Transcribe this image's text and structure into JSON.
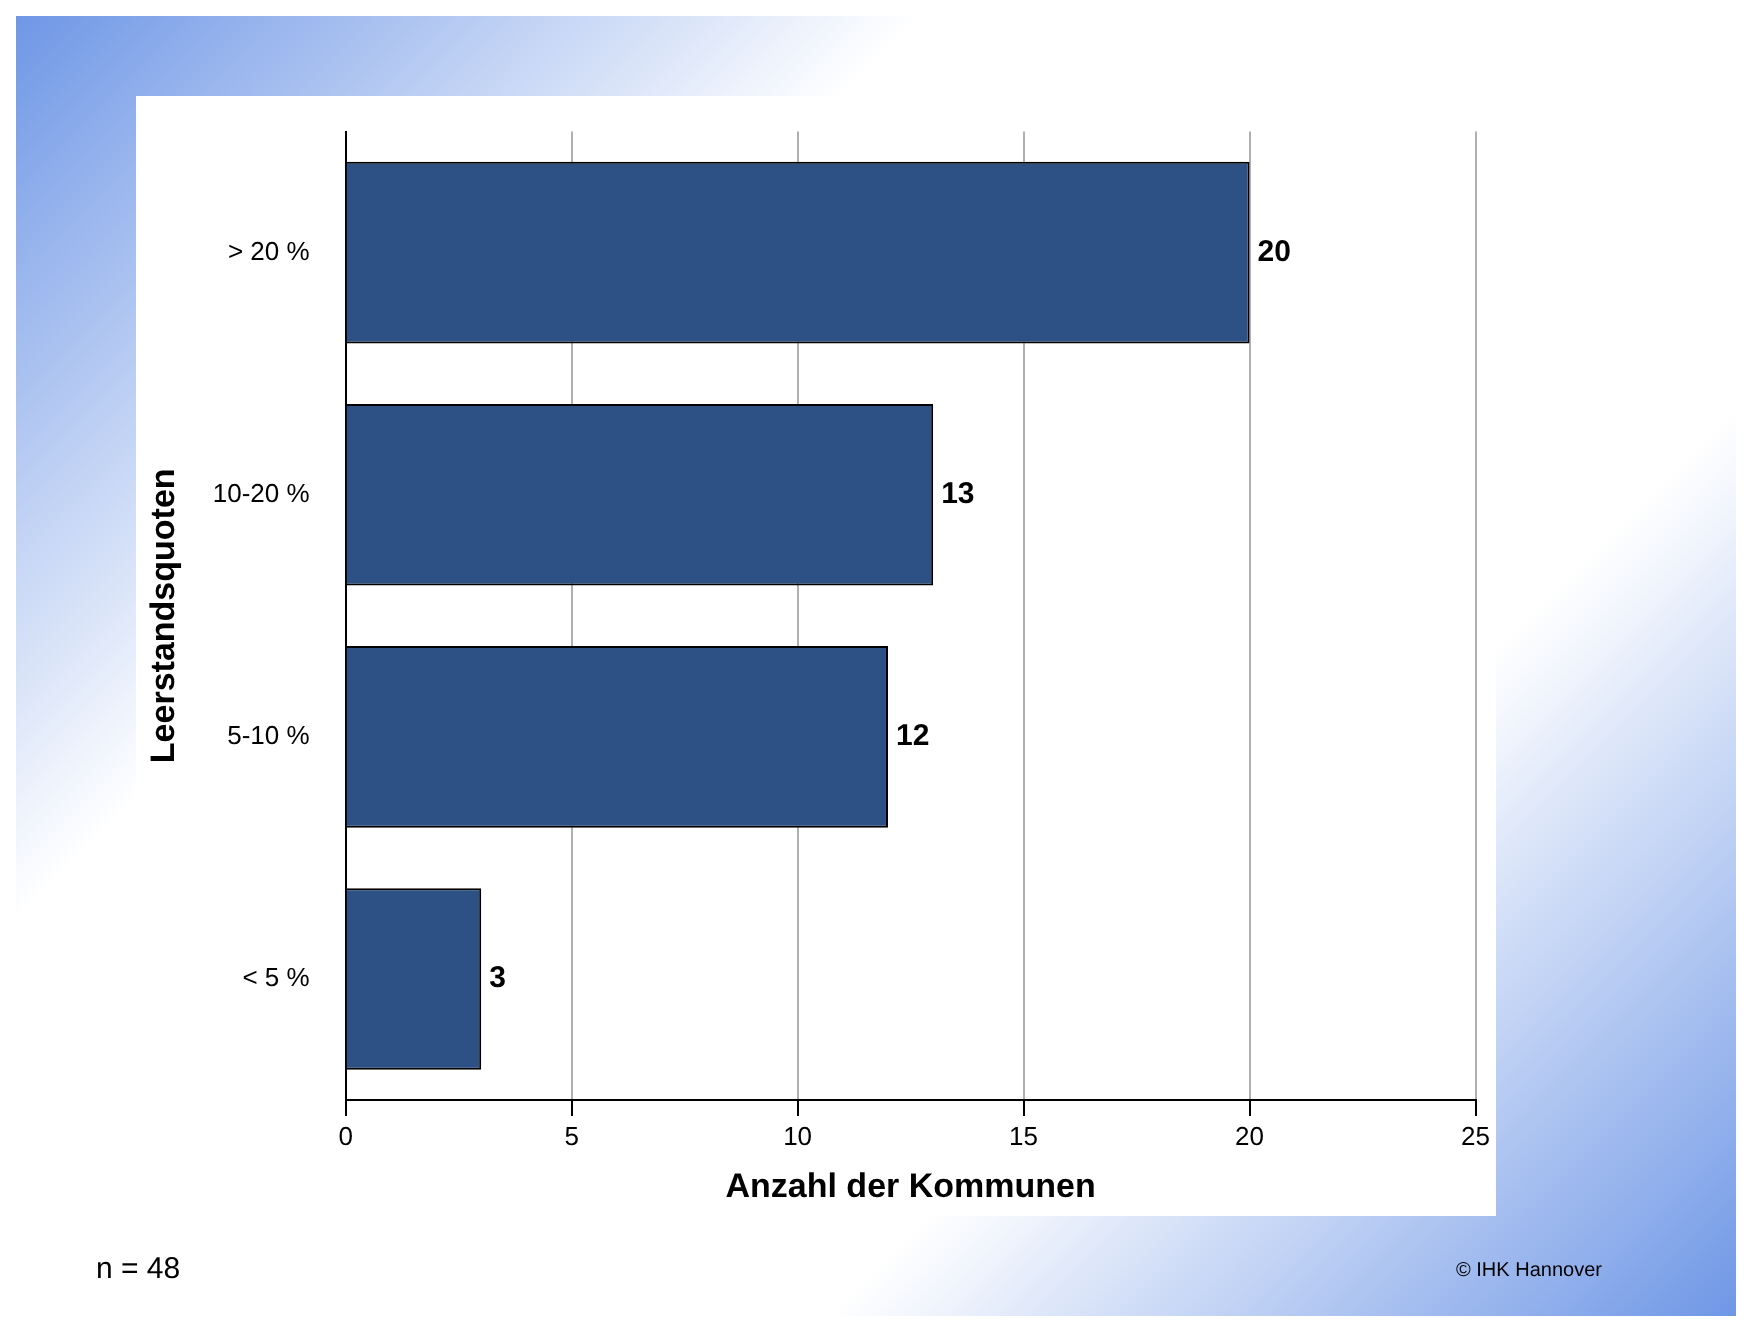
{
  "chart_data": {
    "type": "bar",
    "orientation": "horizontal",
    "xlabel": "Anzahl der Kommunen",
    "ylabel": "Leerstandsquoten",
    "categories": [
      "> 20 %",
      "10-20 %",
      "5-10 %",
      "< 5 %"
    ],
    "values": [
      20,
      13,
      12,
      3
    ],
    "color": "#2d5184",
    "xlim": [
      0,
      25
    ],
    "xticks": [
      0,
      5,
      10,
      15,
      20,
      25
    ],
    "grid": "x",
    "data_labels": true,
    "legend": false,
    "annotations": [
      "n = 48",
      "© IHK Hannover"
    ]
  }
}
